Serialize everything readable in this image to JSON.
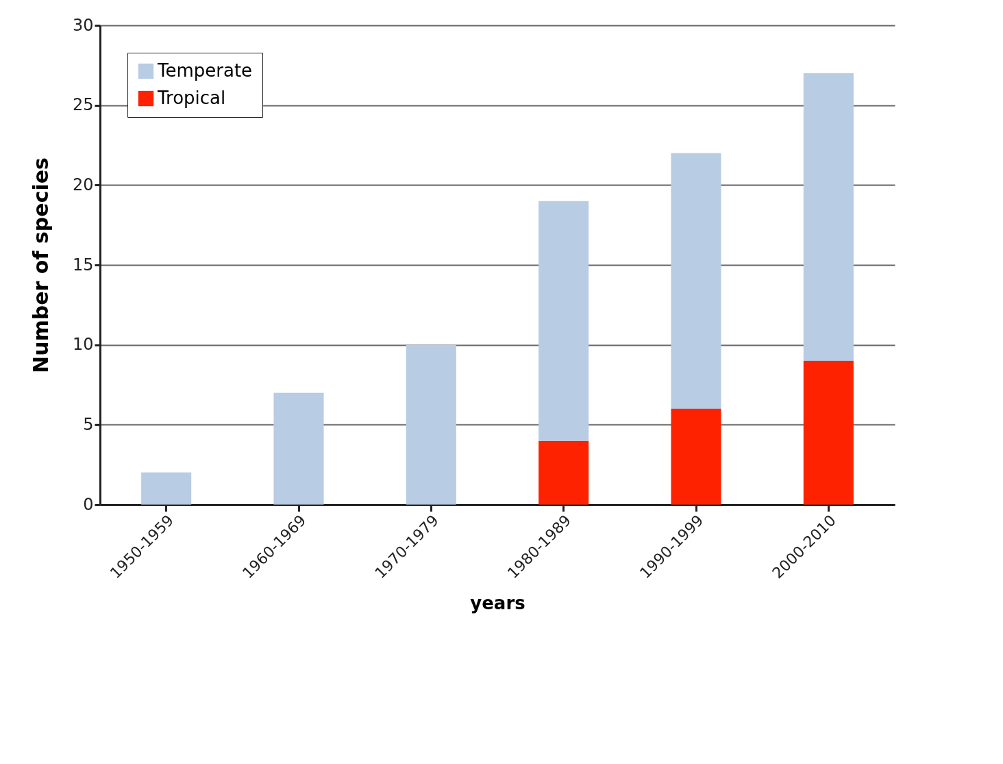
{
  "chart_data": {
    "type": "bar",
    "xlabel": "years",
    "ylabel": "Number of species",
    "categories": [
      "1950-1959",
      "1960-1969",
      "1970-1979",
      "1980-1989",
      "1990-1999",
      "2000-2010"
    ],
    "stacked": true,
    "series": [
      {
        "name": "Tropical",
        "color": "#ff2200",
        "values": [
          0,
          0,
          0,
          4,
          6,
          9
        ]
      },
      {
        "name": "Temperate",
        "color": "#b8cce4",
        "values": [
          2,
          7,
          10,
          15,
          16,
          18
        ]
      }
    ],
    "ylim": [
      0,
      30
    ],
    "yticks": [
      0,
      5,
      10,
      15,
      20,
      25,
      30
    ],
    "grid": "y",
    "legend": "top left"
  }
}
